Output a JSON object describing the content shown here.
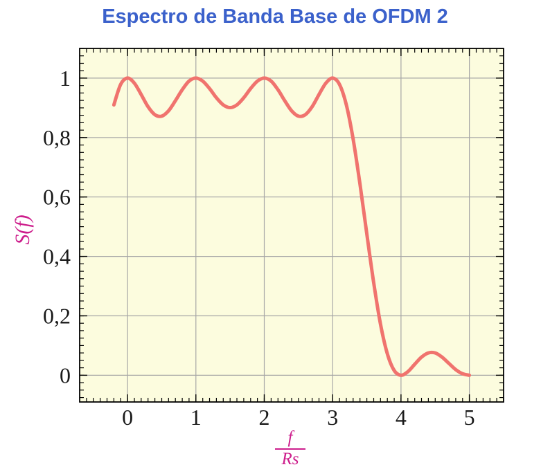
{
  "title": {
    "text": "Espectro de Banda Base de OFDM 2"
  },
  "colors": {
    "title": "#3B61CB",
    "axis_label": "#CD1E8C",
    "curve": "#F0736E",
    "plot_bg": "#FCFCDE",
    "grid": "#A6A6A6",
    "frame": "#000000",
    "tick_text": "#1A1A1A"
  },
  "x_axis": {
    "label_numerator": "f",
    "label_denominator": "Rs",
    "min": -0.7,
    "max": 5.5,
    "minor_step": 0.1,
    "ticks": [
      {
        "v": 0,
        "label": "0"
      },
      {
        "v": 1,
        "label": "1"
      },
      {
        "v": 2,
        "label": "2"
      },
      {
        "v": 3,
        "label": "3"
      },
      {
        "v": 4,
        "label": "4"
      },
      {
        "v": 5,
        "label": "5"
      }
    ]
  },
  "y_axis": {
    "label": "S(f)",
    "min": -0.09,
    "max": 1.1,
    "minor_step": 0.025,
    "ticks": [
      {
        "v": 0,
        "label": "0"
      },
      {
        "v": 0.2,
        "label": "0,2"
      },
      {
        "v": 0.4,
        "label": "0,4"
      },
      {
        "v": 0.6,
        "label": "0,6"
      },
      {
        "v": 0.8,
        "label": "0,8"
      },
      {
        "v": 1,
        "label": "1"
      }
    ]
  },
  "chart_data": {
    "type": "line",
    "title": "Espectro de Banda Base de OFDM 2",
    "xlabel": "f/Rs",
    "ylabel": "S(f)",
    "xlim": [
      -0.7,
      5.5
    ],
    "ylim": [
      -0.09,
      1.1
    ],
    "grid": true,
    "x_tick_labels": [
      "0",
      "1",
      "2",
      "3",
      "4",
      "5"
    ],
    "y_tick_labels": [
      "0",
      "0,2",
      "0,4",
      "0,6",
      "0,8",
      "1"
    ],
    "series": [
      {
        "name": "S(f)",
        "x": [
          -0.2,
          -0.1,
          0,
          0.1,
          0.2,
          0.3,
          0.4,
          0.5,
          0.6,
          0.7,
          0.8,
          0.9,
          1,
          1.1,
          1.2,
          1.3,
          1.4,
          1.5,
          1.6,
          1.7,
          1.8,
          1.9,
          2,
          2.1,
          2.2,
          2.3,
          2.4,
          2.5,
          2.6,
          2.7,
          2.8,
          2.9,
          3,
          3.1,
          3.2,
          3.3,
          3.4,
          3.5,
          3.6,
          3.7,
          3.8,
          3.9,
          4,
          4.1,
          4.2,
          4.3,
          4.4,
          4.5,
          4.6,
          4.7,
          4.8,
          4.9,
          5
        ],
        "y": [
          0.91,
          0.979,
          1.0,
          0.983,
          0.945,
          0.904,
          0.877,
          0.872,
          0.89,
          0.924,
          0.961,
          0.99,
          1.0,
          0.99,
          0.965,
          0.934,
          0.91,
          0.901,
          0.91,
          0.934,
          0.965,
          0.99,
          1.0,
          0.99,
          0.961,
          0.924,
          0.89,
          0.872,
          0.877,
          0.904,
          0.945,
          0.983,
          1.0,
          0.979,
          0.91,
          0.795,
          0.643,
          0.475,
          0.311,
          0.172,
          0.072,
          0.016,
          0.0,
          0.012,
          0.037,
          0.061,
          0.075,
          0.075,
          0.061,
          0.04,
          0.019,
          0.005,
          0.0
        ]
      }
    ]
  }
}
